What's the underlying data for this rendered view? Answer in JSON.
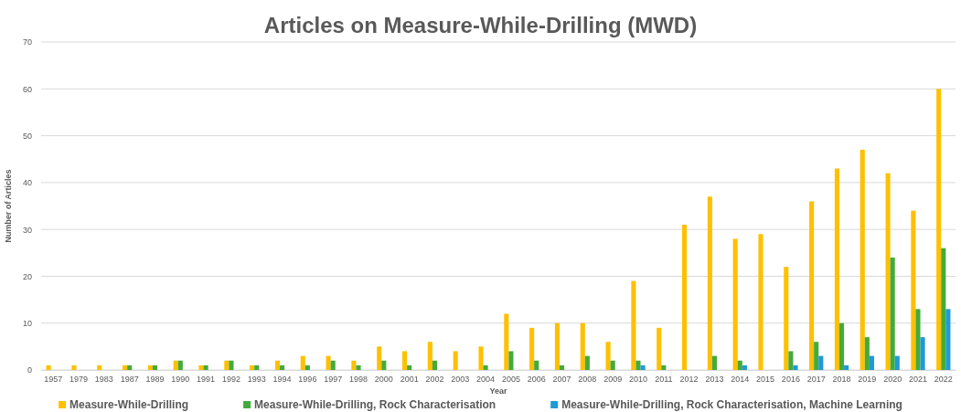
{
  "chart_data": {
    "type": "bar",
    "title": "Articles on Measure-While-Drilling (MWD)",
    "xlabel": "Year",
    "ylabel": "Number of Articles",
    "categories": [
      "1957",
      "1979",
      "1983",
      "1987",
      "1989",
      "1990",
      "1991",
      "1992",
      "1993",
      "1994",
      "1996",
      "1997",
      "1998",
      "2000",
      "2001",
      "2002",
      "2003",
      "2004",
      "2005",
      "2006",
      "2007",
      "2008",
      "2009",
      "2010",
      "2011",
      "2012",
      "2013",
      "2014",
      "2015",
      "2016",
      "2017",
      "2018",
      "2019",
      "2020",
      "2021",
      "2022"
    ],
    "series": [
      {
        "name": "Measure-While-Drilling",
        "color": "#ffc000",
        "values": [
          1,
          1,
          1,
          1,
          1,
          2,
          1,
          2,
          1,
          2,
          3,
          3,
          2,
          5,
          4,
          6,
          4,
          5,
          12,
          9,
          10,
          10,
          6,
          19,
          9,
          31,
          37,
          28,
          29,
          22,
          36,
          43,
          47,
          42,
          34,
          60
        ]
      },
      {
        "name": "Measure-While-Drilling, Rock Characterisation",
        "color": "#43ab3c",
        "values": [
          0,
          0,
          0,
          1,
          1,
          2,
          1,
          2,
          1,
          1,
          1,
          2,
          1,
          2,
          1,
          2,
          0,
          1,
          4,
          2,
          1,
          3,
          2,
          2,
          1,
          0,
          3,
          2,
          0,
          4,
          6,
          10,
          7,
          24,
          13,
          26
        ]
      },
      {
        "name": "Measure-While-Drilling, Rock Characterisation, Machine Learning",
        "color": "#1f9ad6",
        "values": [
          0,
          0,
          0,
          0,
          0,
          0,
          0,
          0,
          0,
          0,
          0,
          0,
          0,
          0,
          0,
          0,
          0,
          0,
          0,
          0,
          0,
          0,
          0,
          1,
          0,
          0,
          0,
          1,
          0,
          1,
          3,
          1,
          3,
          3,
          7,
          13
        ]
      }
    ],
    "ylim": [
      0,
      70
    ],
    "yticks": [
      0,
      10,
      20,
      30,
      40,
      50,
      60,
      70
    ],
    "grid": "y",
    "legend": "bottom"
  }
}
